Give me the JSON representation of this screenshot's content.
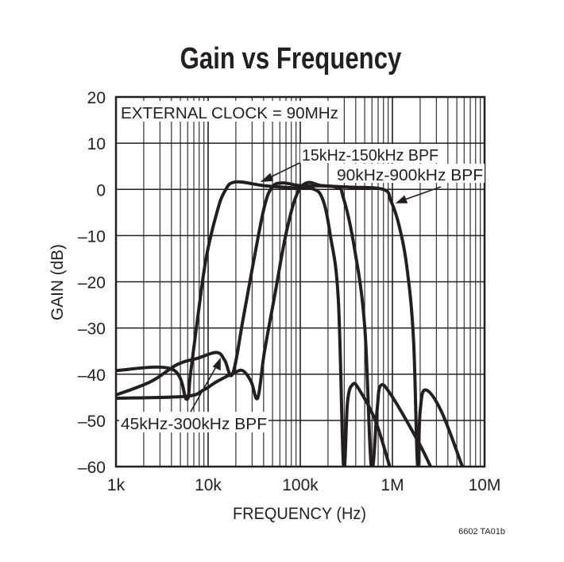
{
  "chart_data": {
    "type": "line",
    "title": "Gain vs Frequency",
    "xlabel": "FREQUENCY (Hz)",
    "ylabel": "GAIN (dB)",
    "xscale": "log",
    "xlim": [
      1000,
      10000000
    ],
    "ylim": [
      -60,
      20
    ],
    "grid": true,
    "x_tick_labels": [
      "1k",
      "10k",
      "100k",
      "1M",
      "10M"
    ],
    "x_tick_values": [
      1000,
      10000,
      100000,
      1000000,
      10000000
    ],
    "y_tick_labels": [
      "20",
      "10",
      "0",
      "–10",
      "–20",
      "–30",
      "–40",
      "–50",
      "–60"
    ],
    "y_tick_values": [
      20,
      10,
      0,
      -10,
      -20,
      -30,
      -40,
      -50,
      -60
    ],
    "annotations": {
      "clock": "EXTERNAL CLOCK = 90MHz",
      "label_15k": "15kHz-150kHz BPF",
      "label_90k": "90kHz-900kHz BPF",
      "label_45k": "45kHz-300kHz BPF"
    },
    "figure_code": "6602 TA01b",
    "line_color": "#231f20",
    "series": [
      {
        "name": "15kHz-150kHz BPF",
        "x": [
          1000,
          4050,
          5820,
          6430,
          7830,
          9550,
          12440,
          15160,
          19730,
          40740,
          89950,
          133700,
          174100,
          212200,
          258800,
          295100,
          325800,
          371500,
          438500,
          651600,
          935000
        ],
        "y": [
          -39.2,
          -38.9,
          -45.4,
          -40,
          -26.7,
          -14.7,
          -5,
          -0.4,
          1.6,
          0.8,
          0.3,
          0.2,
          -2,
          -10,
          -23.9,
          -60,
          -46,
          -42.2,
          -43.4,
          -50,
          -60
        ]
      },
      {
        "name": "45kHz-300kHz BPF",
        "x": [
          1000,
          2388,
          4620,
          7830,
          12440,
          15160,
          18460,
          24050,
          31330,
          40740,
          49700,
          64700,
          102600,
          242100,
          295100,
          384600,
          500000,
          590200,
          680000,
          743000,
          967800,
          1871000,
          2600000
        ],
        "y": [
          -44.5,
          -41.6,
          -37.9,
          -36.5,
          -35.3,
          -37,
          -39.9,
          -27.9,
          -15.3,
          -3.8,
          0.5,
          1.4,
          0.8,
          0.5,
          -2,
          -12.4,
          -29.6,
          -60,
          -48,
          -42.5,
          -44.5,
          -54.3,
          -60
        ]
      },
      {
        "name": "90kHz-900kHz BPF",
        "x": [
          1000,
          5630,
          8940,
          12440,
          19730,
          24050,
          29300,
          34570,
          40740,
          53090,
          69180,
          89950,
          117200,
          174100,
          336500,
          794300,
          967800,
          1180000,
          1439000,
          1694000,
          1871000,
          2000000,
          2281000,
          3388000,
          5741000
        ],
        "y": [
          -45.2,
          -44.8,
          -43.4,
          -41.6,
          -39.6,
          -39.3,
          -41.6,
          -45.1,
          -35.3,
          -22.7,
          -10.1,
          -1.5,
          1.4,
          0.8,
          0.5,
          0,
          -2.6,
          -7.8,
          -17,
          -32.5,
          -59.4,
          -48,
          -43.4,
          -48,
          -60
        ]
      }
    ]
  }
}
